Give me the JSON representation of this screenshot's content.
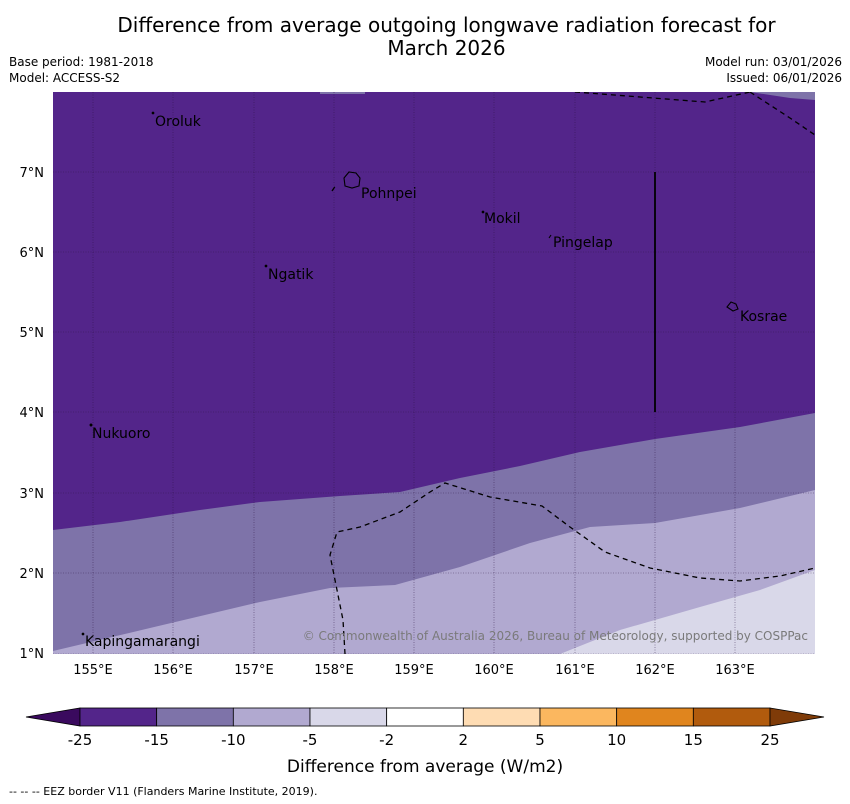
{
  "title_line1": "Difference from average outgoing longwave radiation forecast for",
  "title_line2": "March 2026",
  "base_period": "Base period: 1981-2018",
  "model": "Model: ACCESS-S2",
  "model_run": "Model run: 03/01/2026",
  "issued": "Issued: 06/01/2026",
  "lat_labels": [
    "7°N",
    "6°N",
    "5°N",
    "4°N",
    "3°N",
    "2°N",
    "1°N"
  ],
  "lon_labels": [
    "155°E",
    "156°E",
    "157°E",
    "158°E",
    "159°E",
    "160°E",
    "161°E",
    "162°E",
    "163°E"
  ],
  "places": [
    "Oroluk",
    "Pohnpei",
    "Mokil",
    "Pingelap",
    "Ngatik",
    "Kosrae",
    "Nukuoro",
    "Kapingamarangi"
  ],
  "copyright": "© Commonwealth of Australia 2026, Bureau of Meteorology, supported by COSPPac",
  "colorbar": {
    "tick_labels": [
      "-25",
      "-15",
      "-10",
      "-5",
      "-2",
      "2",
      "5",
      "10",
      "15",
      "25"
    ],
    "colors": [
      "#3a0a5e",
      "#53258a",
      "#7e73a9",
      "#b1a9d0",
      "#d9d8e9",
      "#ffffff",
      "#fedcb3",
      "#fbb75f",
      "#e0851e",
      "#b15b0d",
      "#7f3b08"
    ],
    "label": "Difference from average (W/m2)"
  },
  "footnote": "--  --  -- EEZ border V11 (Flanders Marine Institute, 2019)."
}
